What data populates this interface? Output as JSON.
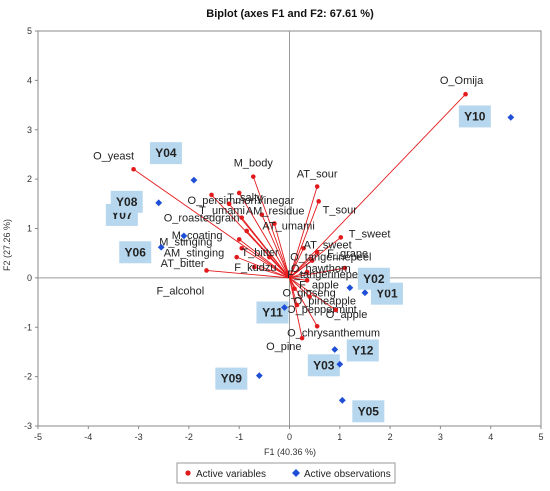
{
  "chart_data": {
    "type": "scatter",
    "title": "Biplot (axes F1 and F2: 67.61 %)",
    "xlabel": "F1 (40.36 %)",
    "ylabel": "F2 (27.26 %)",
    "xlim": [
      -5,
      5
    ],
    "ylim": [
      -3,
      5
    ],
    "xticks": [
      "-5",
      "-4",
      "-3",
      "-2",
      "-1",
      "0",
      "1",
      "2",
      "3",
      "4",
      "5"
    ],
    "yticks": [
      "-3",
      "-2",
      "-1",
      "0",
      "1",
      "2",
      "3",
      "4",
      "5"
    ],
    "grid": false,
    "legend_position": "bottom",
    "series": [
      {
        "name": "Active variables",
        "color": "#e31a1c",
        "marker": "circle",
        "vectors_from_origin": true,
        "points": [
          {
            "label": "O_Omija",
            "x": 3.5,
            "y": 3.72
          },
          {
            "label": "O_yeast",
            "x": -3.1,
            "y": 2.2
          },
          {
            "label": "M_body",
            "x": -0.72,
            "y": 2.05
          },
          {
            "label": "AT_sour",
            "x": 0.55,
            "y": 1.85
          },
          {
            "label": "T_salty",
            "x": -1.0,
            "y": 1.72
          },
          {
            "label": "T_sour",
            "x": 0.58,
            "y": 1.55
          },
          {
            "label": "O_persimmonVinegar",
            "x": -1.55,
            "y": 1.68
          },
          {
            "label": "T_umami",
            "x": -1.2,
            "y": 1.5
          },
          {
            "label": "AM_residue",
            "x": -0.55,
            "y": 1.28
          },
          {
            "label": "O_roastedgrain",
            "x": -0.95,
            "y": 1.22
          },
          {
            "label": "AT_umami",
            "x": -0.3,
            "y": 1.1
          },
          {
            "label": "M_coating",
            "x": -0.85,
            "y": 0.95
          },
          {
            "label": "M_stinging",
            "x": -1.0,
            "y": 0.78
          },
          {
            "label": "T_sweet",
            "x": 1.02,
            "y": 0.82
          },
          {
            "label": "AM_stinging",
            "x": -0.95,
            "y": 0.6
          },
          {
            "label": "AT_sweet",
            "x": 0.28,
            "y": 0.6
          },
          {
            "label": "T_bitter",
            "x": -0.4,
            "y": 0.42
          },
          {
            "label": "AT_bitter",
            "x": -1.05,
            "y": 0.42
          },
          {
            "label": "F_grape",
            "x": 0.55,
            "y": 0.52
          },
          {
            "label": "O_tangerinepeel",
            "x": 0.45,
            "y": 0.35
          },
          {
            "label": "F_kudzu",
            "x": -0.7,
            "y": 0.22
          },
          {
            "label": "O_hawthorn",
            "x": 1.1,
            "y": 0.2
          },
          {
            "label": "F_tangerinepeel",
            "x": 0.35,
            "y": 0.12
          },
          {
            "label": "F_alcohol",
            "x": -1.65,
            "y": 0.15
          },
          {
            "label": "F_apple",
            "x": 0.35,
            "y": -0.05
          },
          {
            "label": "O_ginseng",
            "x": 0.1,
            "y": -0.22
          },
          {
            "label": "O_pineapple",
            "x": 0.4,
            "y": -0.38
          },
          {
            "label": "O_peppermint",
            "x": 0.15,
            "y": -0.55
          },
          {
            "label": "O_apple",
            "x": 0.92,
            "y": -0.65
          },
          {
            "label": "O_chrysanthemum",
            "x": 0.55,
            "y": -0.98
          },
          {
            "label": "O_pine",
            "x": 0.25,
            "y": -1.22
          }
        ]
      },
      {
        "name": "Active observations",
        "color": "#1f4fd6",
        "marker": "diamond",
        "points": [
          {
            "label": "Y01",
            "x": 1.5,
            "y": -0.3
          },
          {
            "label": "Y02",
            "x": 1.2,
            "y": -0.2
          },
          {
            "label": "Y03",
            "x": 1.0,
            "y": -1.75
          },
          {
            "label": "Y04",
            "x": -1.9,
            "y": 1.98
          },
          {
            "label": "Y05",
            "x": 1.05,
            "y": -2.48
          },
          {
            "label": "Y06",
            "x": -2.55,
            "y": 0.62
          },
          {
            "label": "Y07",
            "x": -2.1,
            "y": 0.85
          },
          {
            "label": "Y08",
            "x": -2.6,
            "y": 1.52
          },
          {
            "label": "Y09",
            "x": -0.6,
            "y": -1.98
          },
          {
            "label": "Y10",
            "x": 4.4,
            "y": 3.25
          },
          {
            "label": "Y11",
            "x": -0.1,
            "y": -0.6
          },
          {
            "label": "Y12",
            "x": 0.9,
            "y": -1.45
          }
        ]
      }
    ]
  }
}
